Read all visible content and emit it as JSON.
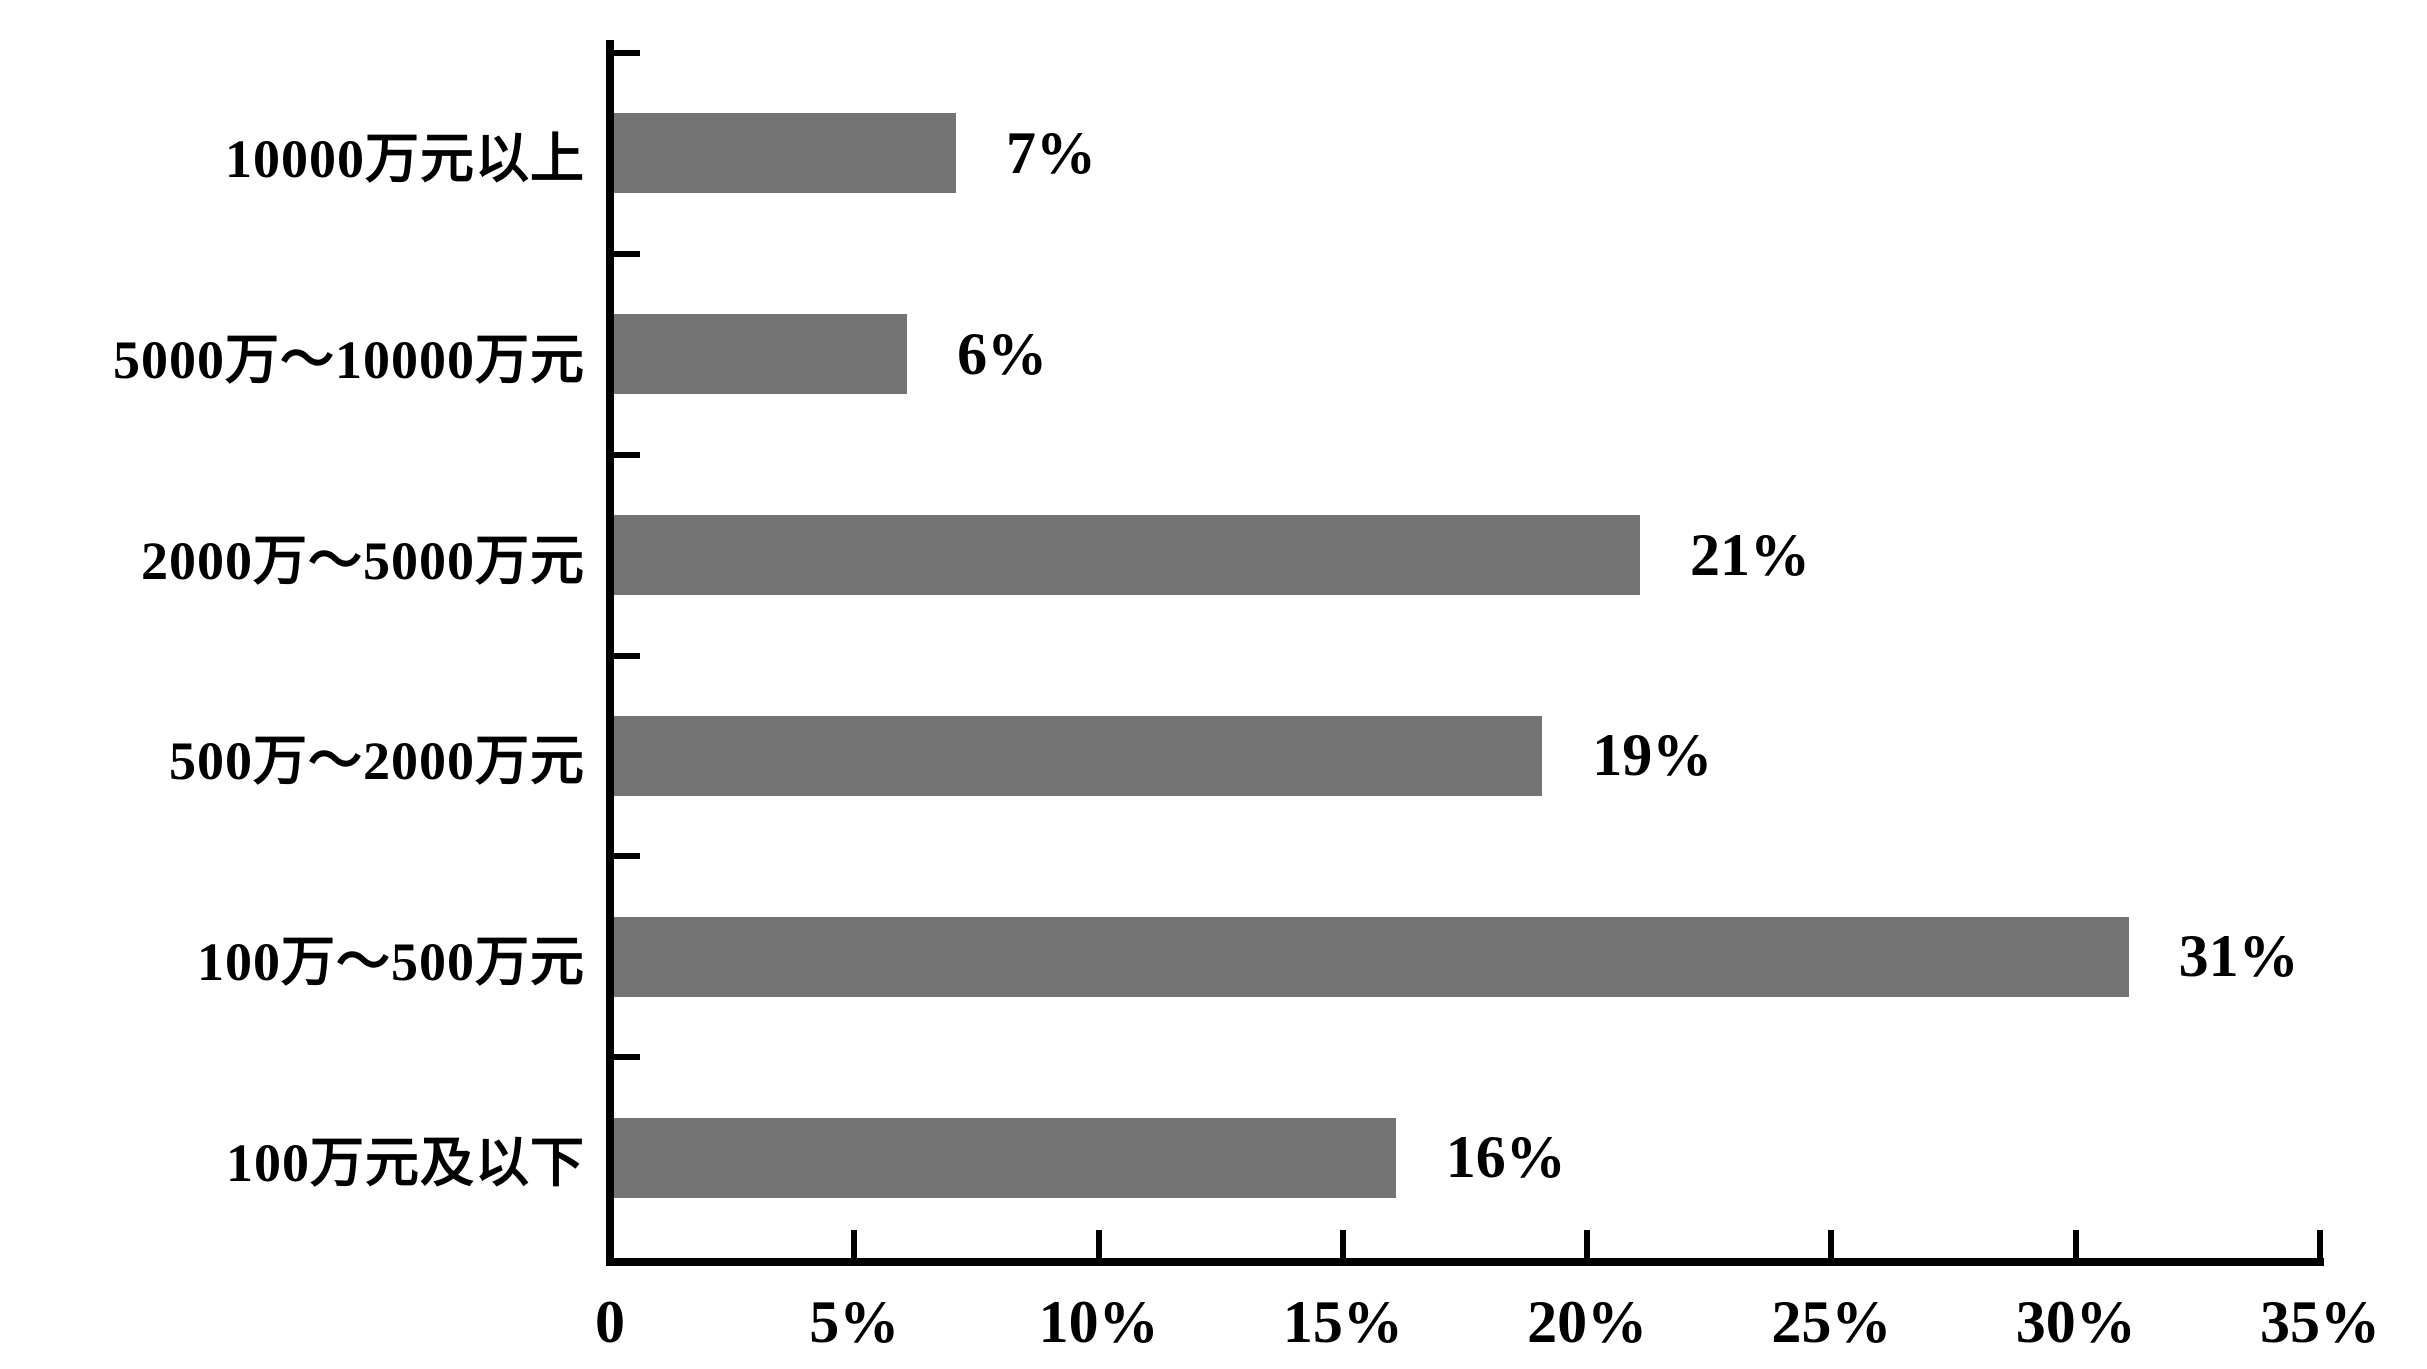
{
  "chart_data": {
    "type": "bar",
    "orientation": "horizontal",
    "title": "",
    "xlabel": "",
    "ylabel": "",
    "categories": [
      "10000万元以上",
      "5000万～10000万元",
      "2000万～5000万元",
      "500万～2000万元",
      "100万～500万元",
      "100万元及以下"
    ],
    "values": [
      7,
      6,
      21,
      19,
      31,
      16
    ],
    "value_labels": [
      "7%",
      "6%",
      "21%",
      "19%",
      "31%",
      "16%"
    ],
    "x_tick_labels": [
      "0",
      "5%",
      "10%",
      "15%",
      "20%",
      "25%",
      "30%",
      "35%"
    ],
    "xlim": [
      0,
      35
    ],
    "x_tick_step": 5,
    "grid": "off",
    "legend": "none",
    "bar_color": "#737373",
    "axis_color": "#000000",
    "background_color": "#ffffff",
    "label_color": "#000000"
  }
}
